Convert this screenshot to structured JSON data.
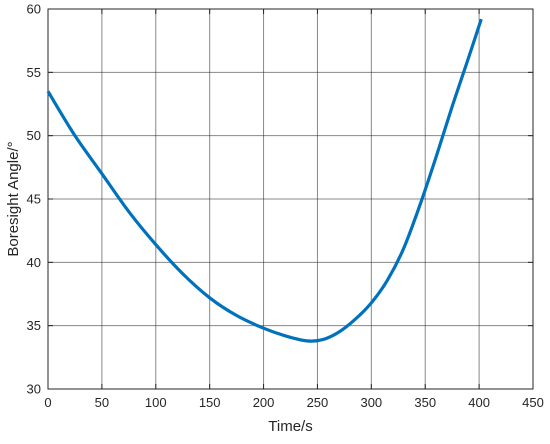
{
  "chart_data": {
    "type": "line",
    "title": "",
    "xlabel": "Time/s",
    "ylabel": "Boresight Angle/°",
    "xlim": [
      0,
      450
    ],
    "ylim": [
      30,
      60
    ],
    "xticks": [
      0,
      50,
      100,
      150,
      200,
      250,
      300,
      350,
      400,
      450
    ],
    "yticks": [
      30,
      35,
      40,
      45,
      50,
      55,
      60
    ],
    "xtick_labels": [
      "0",
      "50",
      "100",
      "150",
      "200",
      "250",
      "300",
      "350",
      "400",
      "450"
    ],
    "ytick_labels": [
      "30",
      "35",
      "40",
      "45",
      "50",
      "55",
      "60"
    ],
    "grid": true,
    "legend": "none",
    "series": [
      {
        "color": "#0072BD",
        "x": [
          0,
          25,
          50,
          75,
          100,
          125,
          150,
          175,
          200,
          220,
          240,
          255,
          270,
          285,
          300,
          315,
          330,
          345,
          360,
          375,
          390,
          402
        ],
        "y": [
          53.5,
          50.0,
          47.0,
          44.0,
          41.4,
          39.1,
          37.2,
          35.8,
          34.8,
          34.2,
          33.8,
          33.9,
          34.5,
          35.5,
          36.8,
          38.6,
          41.1,
          44.5,
          48.3,
          52.3,
          56.1,
          59.2
        ]
      }
    ]
  }
}
